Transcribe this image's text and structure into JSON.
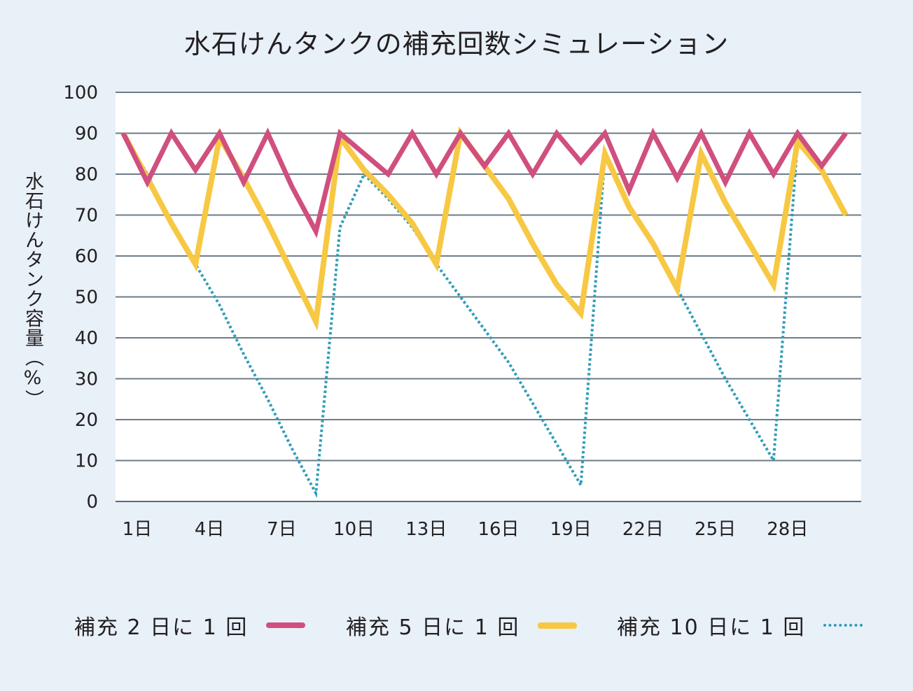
{
  "chart_data": {
    "type": "line",
    "title": "水石けんタンクの補充回数シミュレーション",
    "ylabel": "水石けんタンク容量（%）",
    "xlabel": "",
    "ylim": [
      0,
      100
    ],
    "yticks": [
      0,
      10,
      20,
      30,
      40,
      50,
      60,
      70,
      80,
      90,
      100
    ],
    "grid": true,
    "legend_position": "bottom",
    "x": [
      1,
      2,
      3,
      4,
      5,
      6,
      7,
      8,
      9,
      10,
      11,
      12,
      13,
      14,
      15,
      16,
      17,
      18,
      19,
      20,
      21,
      22,
      23,
      24,
      25,
      26,
      27,
      28,
      29,
      30,
      31
    ],
    "xticks": [
      {
        "day": 1,
        "label": "1日"
      },
      {
        "day": 4,
        "label": "4日"
      },
      {
        "day": 7,
        "label": "7日"
      },
      {
        "day": 10,
        "label": "10日"
      },
      {
        "day": 13,
        "label": "13日"
      },
      {
        "day": 16,
        "label": "16日"
      },
      {
        "day": 19,
        "label": "19日"
      },
      {
        "day": 22,
        "label": "22日"
      },
      {
        "day": 25,
        "label": "25日"
      },
      {
        "day": 28,
        "label": "28日"
      }
    ],
    "series": [
      {
        "name": "補充 2 日に 1 回",
        "style": "solid",
        "color": "#d04f7f",
        "values": [
          90,
          78,
          90,
          81,
          90,
          78,
          90,
          77,
          66,
          90,
          85,
          80,
          90,
          80,
          90,
          82,
          90,
          80,
          90,
          83,
          90,
          76,
          90,
          79,
          90,
          78,
          90,
          80,
          90,
          82,
          90
        ]
      },
      {
        "name": "補充 5 日に 1 回",
        "style": "solid",
        "color": "#f7c843",
        "values": [
          90,
          79,
          68,
          58,
          89,
          79,
          68,
          56,
          44,
          89,
          81,
          75,
          68,
          58,
          90,
          82,
          74,
          63,
          53,
          46,
          85,
          72,
          63,
          52,
          85,
          73,
          63,
          53,
          88,
          81,
          70
        ]
      },
      {
        "name": "補充 10 日に 1 回",
        "style": "dotted",
        "color": "#2f9cb8",
        "values": [
          90,
          80,
          68,
          58,
          48,
          36,
          25,
          13,
          2,
          67,
          80,
          74,
          67,
          58,
          50,
          42,
          34,
          24,
          14,
          4,
          85,
          72,
          63,
          52,
          41,
          30,
          20,
          10,
          88,
          81,
          70
        ]
      }
    ]
  }
}
